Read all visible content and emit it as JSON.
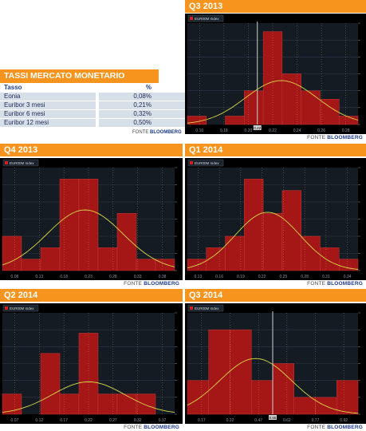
{
  "table": {
    "title": "TASSI MERCATO MONETARIO",
    "col_tasso": "Tasso",
    "col_pct": "%",
    "rows": [
      {
        "name": "Eonia",
        "value": "0,08%"
      },
      {
        "name": "Euribor 3 mesi",
        "value": "0,21%"
      },
      {
        "name": "Euribor 6 mesi",
        "value": "0,32%"
      },
      {
        "name": "Euribor 12 mesi",
        "value": "0,50%"
      }
    ],
    "source_prefix": "FONTE ",
    "source_brand": "BLOOMBERG"
  },
  "source_prefix": "FONTE ",
  "source_brand": "BLOOMBERG",
  "colors": {
    "accent": "#f7941d",
    "bar": "#a51616",
    "curve": "#d8d84a",
    "bg": "#000000"
  },
  "chart_data": [
    {
      "type": "bar",
      "title": "Q3 2013",
      "legend": "EUR00M Index",
      "x_ticks": [
        "0.16",
        "0.18",
        "0.20",
        "0.22",
        "0.24",
        "0.26",
        "0.28"
      ],
      "values": [
        1,
        0,
        1,
        4,
        11,
        6,
        4,
        3,
        1
      ],
      "ylim": [
        0,
        12
      ],
      "marker_fraction": 0.41,
      "marker_label": "0.22",
      "curve_mean": 0.55,
      "curve_sd": 0.21,
      "curve_peak": 5.2
    },
    {
      "type": "bar",
      "title": "Q4 2013",
      "legend": "EUR00M Index",
      "x_ticks": [
        "0.08",
        "0.13",
        "0.18",
        "0.23",
        "0.28",
        "0.33",
        "0.38"
      ],
      "values": [
        3,
        1,
        2,
        8,
        8,
        2,
        5,
        1,
        1
      ],
      "ylim": [
        0,
        9
      ],
      "curve_mean": 0.48,
      "curve_sd": 0.22,
      "curve_peak": 5.3
    },
    {
      "type": "bar",
      "title": "Q1 2014",
      "legend": "EUR00M Index",
      "x_ticks": [
        "0.13",
        "0.16",
        "0.19",
        "0.22",
        "0.25",
        "0.28",
        "0.31",
        "0.34"
      ],
      "values": [
        1,
        2,
        3,
        8,
        5,
        7,
        3,
        2,
        1
      ],
      "ylim": [
        0,
        9
      ],
      "curve_mean": 0.47,
      "curve_sd": 0.19,
      "curve_peak": 5.1
    },
    {
      "type": "bar",
      "title": "Q2 2014",
      "legend": "EUR00M Index",
      "x_ticks": [
        "0.07",
        "0.12",
        "0.17",
        "0.22",
        "0.27",
        "0.32",
        "0.37"
      ],
      "values": [
        1,
        0,
        3,
        1,
        4,
        1,
        1,
        1,
        0
      ],
      "ylim": [
        0,
        5
      ],
      "curve_mean": 0.5,
      "curve_sd": 0.21,
      "curve_peak": 1.6
    },
    {
      "type": "bar",
      "title": "Q3 2014",
      "legend": "EUR00M Index",
      "x_ticks": [
        "0.17",
        "0.32",
        "0.47",
        "0.62",
        "0.77",
        "0.92"
      ],
      "values": [
        2,
        5,
        5,
        2,
        3,
        1,
        1,
        2
      ],
      "ylim": [
        0,
        6
      ],
      "marker_fraction": 0.5,
      "marker_label": "0.55",
      "curve_mean": 0.4,
      "curve_sd": 0.21,
      "curve_peak": 3.3
    }
  ]
}
